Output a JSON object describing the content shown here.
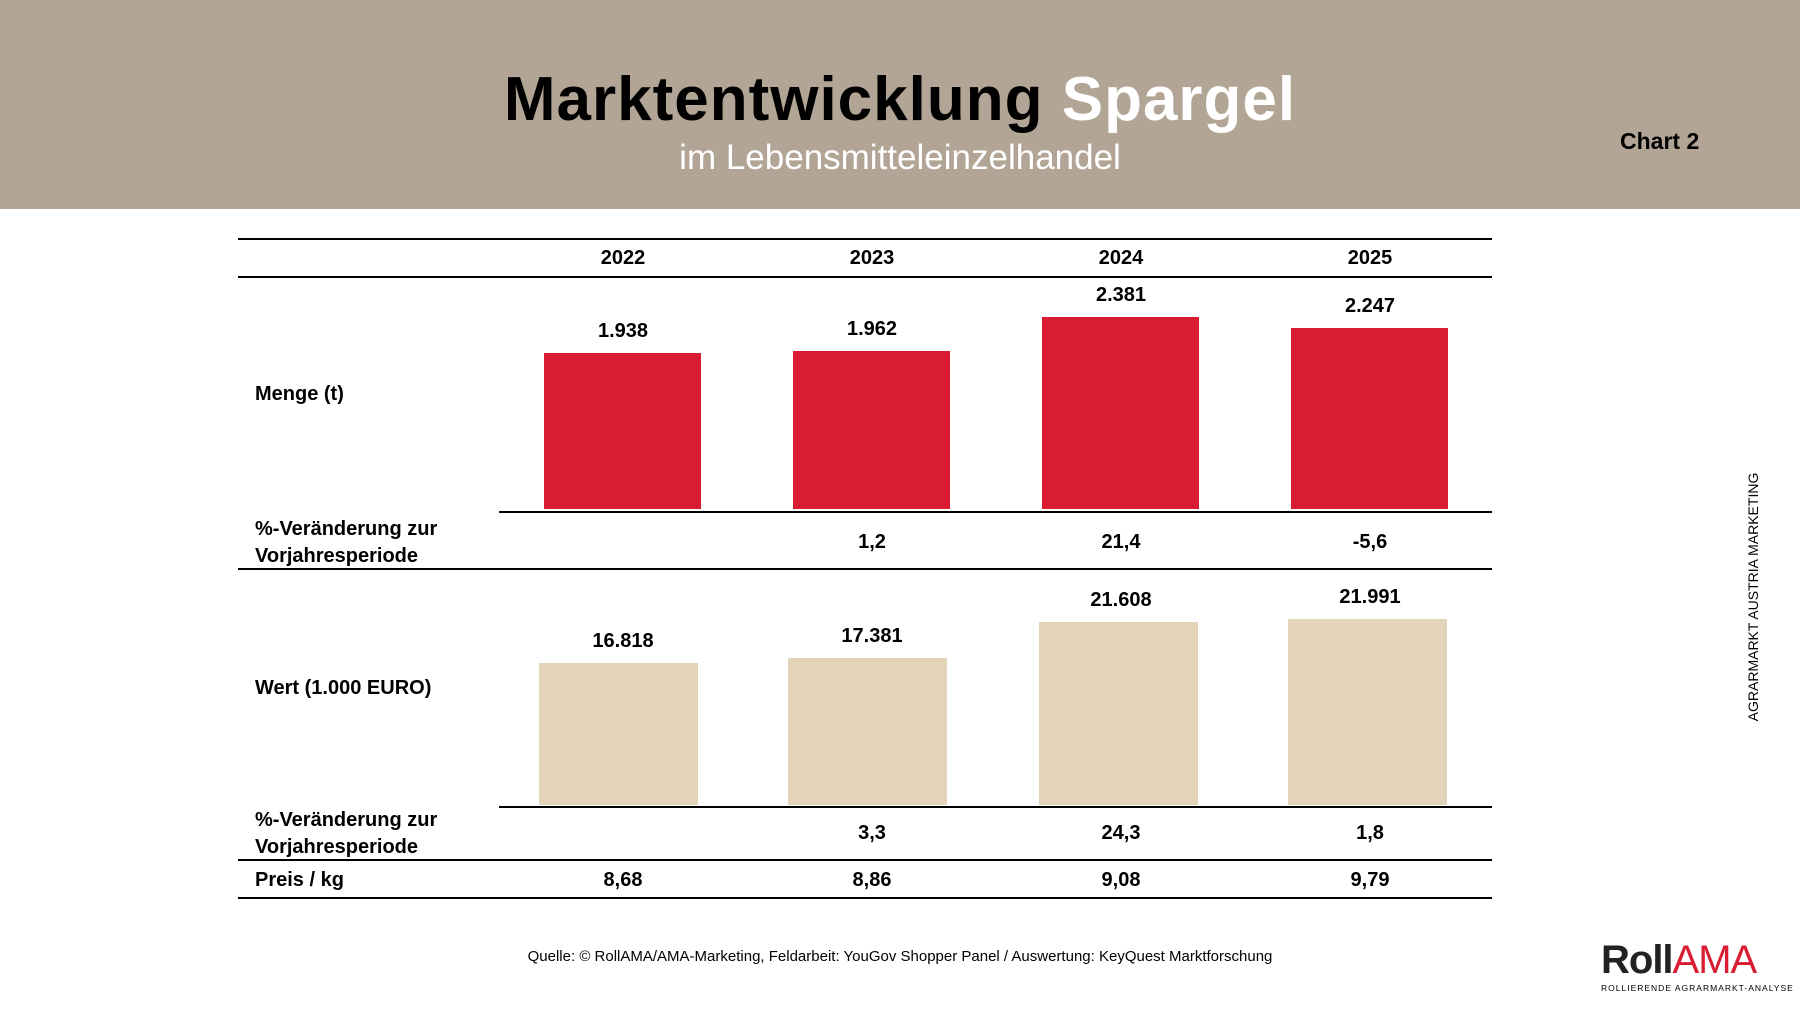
{
  "header": {
    "title_dark": "Marktentwicklung",
    "title_light": "Spargel",
    "subtitle": "im Lebensmitteleinzelhandel",
    "chart_label": "Chart 2"
  },
  "side_text": "AGRARMARKT AUSTRIA MARKETING",
  "source": "Quelle: © RollAMA/AMA-Marketing, Feldarbeit: YouGov Shopper Panel / Auswertung: KeyQuest Marktforschung",
  "logo": {
    "roll": "Roll",
    "ama": "AMA",
    "tagline": "ROLLIERENDE AGRARMARKT-ANALYSE"
  },
  "colors": {
    "header": "#b2a595",
    "menge": "#d91c32",
    "wert": "#e3d4b9"
  },
  "chart_data": {
    "type": "bar",
    "categories": [
      "2022",
      "2023",
      "2024",
      "2025"
    ],
    "series": [
      {
        "name": "Menge (t)",
        "values": [
          1938,
          1962,
          2381,
          2247
        ],
        "labels": [
          "1.938",
          "1.962",
          "2.381",
          "2.247"
        ]
      },
      {
        "name": "Wert (1.000 EURO)",
        "values": [
          16818,
          17381,
          21608,
          21991
        ],
        "labels": [
          "16.818",
          "17.381",
          "21.608",
          "21.991"
        ]
      }
    ],
    "rows": {
      "menge_change": {
        "label_1": "%-Veränderung zur",
        "label_2": "Vorjahresperiode",
        "values": [
          "",
          "1,2",
          "21,4",
          "-5,6"
        ]
      },
      "wert_change": {
        "label_1": "%-Veränderung zur",
        "label_2": "Vorjahresperiode",
        "values": [
          "",
          "3,3",
          "24,3",
          "1,8"
        ]
      },
      "price": {
        "label": "Preis / kg",
        "values": [
          "8,68",
          "8,86",
          "9,08",
          "9,79"
        ]
      }
    }
  }
}
